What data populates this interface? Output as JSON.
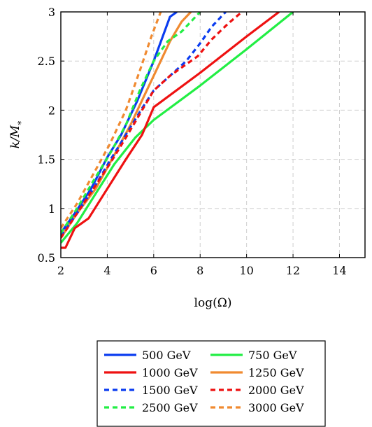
{
  "chart_data": {
    "type": "line",
    "xlabel": "log(Ω)",
    "ylabel": "k/M*",
    "xlim": [
      2,
      15.1
    ],
    "ylim": [
      0.5,
      3
    ],
    "xticks": [
      "2",
      "4",
      "6",
      "8",
      "10",
      "12",
      "14"
    ],
    "yticks": [
      "0.5",
      "1",
      "1.5",
      "2",
      "2.5",
      "3"
    ],
    "grid": true,
    "legend_position": "bottom",
    "series": [
      {
        "name": "500 GeV",
        "color": "#0a3cf0",
        "style": "solid",
        "x": [
          2,
          2.6,
          3.3,
          4,
          4.6,
          5.3,
          6,
          6.7,
          7
        ],
        "y": [
          0.75,
          0.95,
          1.2,
          1.52,
          1.75,
          2.1,
          2.5,
          2.95,
          3
        ]
      },
      {
        "name": "750 GeV",
        "color": "#22ee44",
        "style": "solid",
        "x": [
          2,
          2.7,
          3.5,
          4.3,
          5.2,
          6,
          8,
          10,
          12
        ],
        "y": [
          0.65,
          0.85,
          1.15,
          1.45,
          1.72,
          1.9,
          2.25,
          2.62,
          3
        ]
      },
      {
        "name": "1000 GeV",
        "color": "#ee1111",
        "style": "solid",
        "x": [
          2,
          2.2,
          2.6,
          3.2,
          4,
          4.8,
          5.5,
          6,
          8,
          10,
          11.4
        ],
        "y": [
          0.6,
          0.6,
          0.8,
          0.9,
          1.2,
          1.5,
          1.75,
          2.03,
          2.38,
          2.75,
          3
        ]
      },
      {
        "name": "1250 GeV",
        "color": "#f08a30",
        "style": "solid",
        "x": [
          2,
          2.7,
          3.5,
          4.2,
          5,
          5.6,
          6.2,
          6.7,
          7.2,
          7.6
        ],
        "y": [
          0.7,
          0.95,
          1.2,
          1.5,
          1.85,
          2.15,
          2.45,
          2.7,
          2.9,
          3
        ]
      },
      {
        "name": "1500 GeV",
        "color": "#0a3cf0",
        "style": "dashed",
        "x": [
          2,
          2.7,
          3.4,
          4.1,
          4.8,
          5.5,
          6,
          6.7,
          7.4,
          8,
          8.5,
          9.1
        ],
        "y": [
          0.72,
          0.95,
          1.2,
          1.48,
          1.75,
          2.02,
          2.2,
          2.35,
          2.5,
          2.68,
          2.85,
          3
        ]
      },
      {
        "name": "2000 GeV",
        "color": "#ee1111",
        "style": "dashed",
        "x": [
          2,
          2.7,
          3.4,
          4.1,
          4.8,
          5.5,
          6,
          6.7,
          7.3,
          7.9,
          8.5,
          9.2,
          9.8
        ],
        "y": [
          0.7,
          0.95,
          1.2,
          1.45,
          1.72,
          2.0,
          2.2,
          2.35,
          2.45,
          2.55,
          2.72,
          2.88,
          3
        ]
      },
      {
        "name": "2500 GeV",
        "color": "#22ee44",
        "style": "dashed",
        "x": [
          2,
          2.7,
          3.4,
          4.1,
          4.8,
          5.4,
          6,
          6.6,
          7.2,
          7.6,
          8
        ],
        "y": [
          0.75,
          1.0,
          1.28,
          1.55,
          1.85,
          2.2,
          2.5,
          2.7,
          2.8,
          2.9,
          3
        ]
      },
      {
        "name": "3000 GeV",
        "color": "#f08a30",
        "style": "dashed",
        "x": [
          2,
          2.7,
          3.4,
          4.1,
          4.8,
          5.4,
          5.9,
          6.3
        ],
        "y": [
          0.8,
          1.05,
          1.35,
          1.65,
          2.0,
          2.4,
          2.75,
          3
        ]
      }
    ]
  }
}
